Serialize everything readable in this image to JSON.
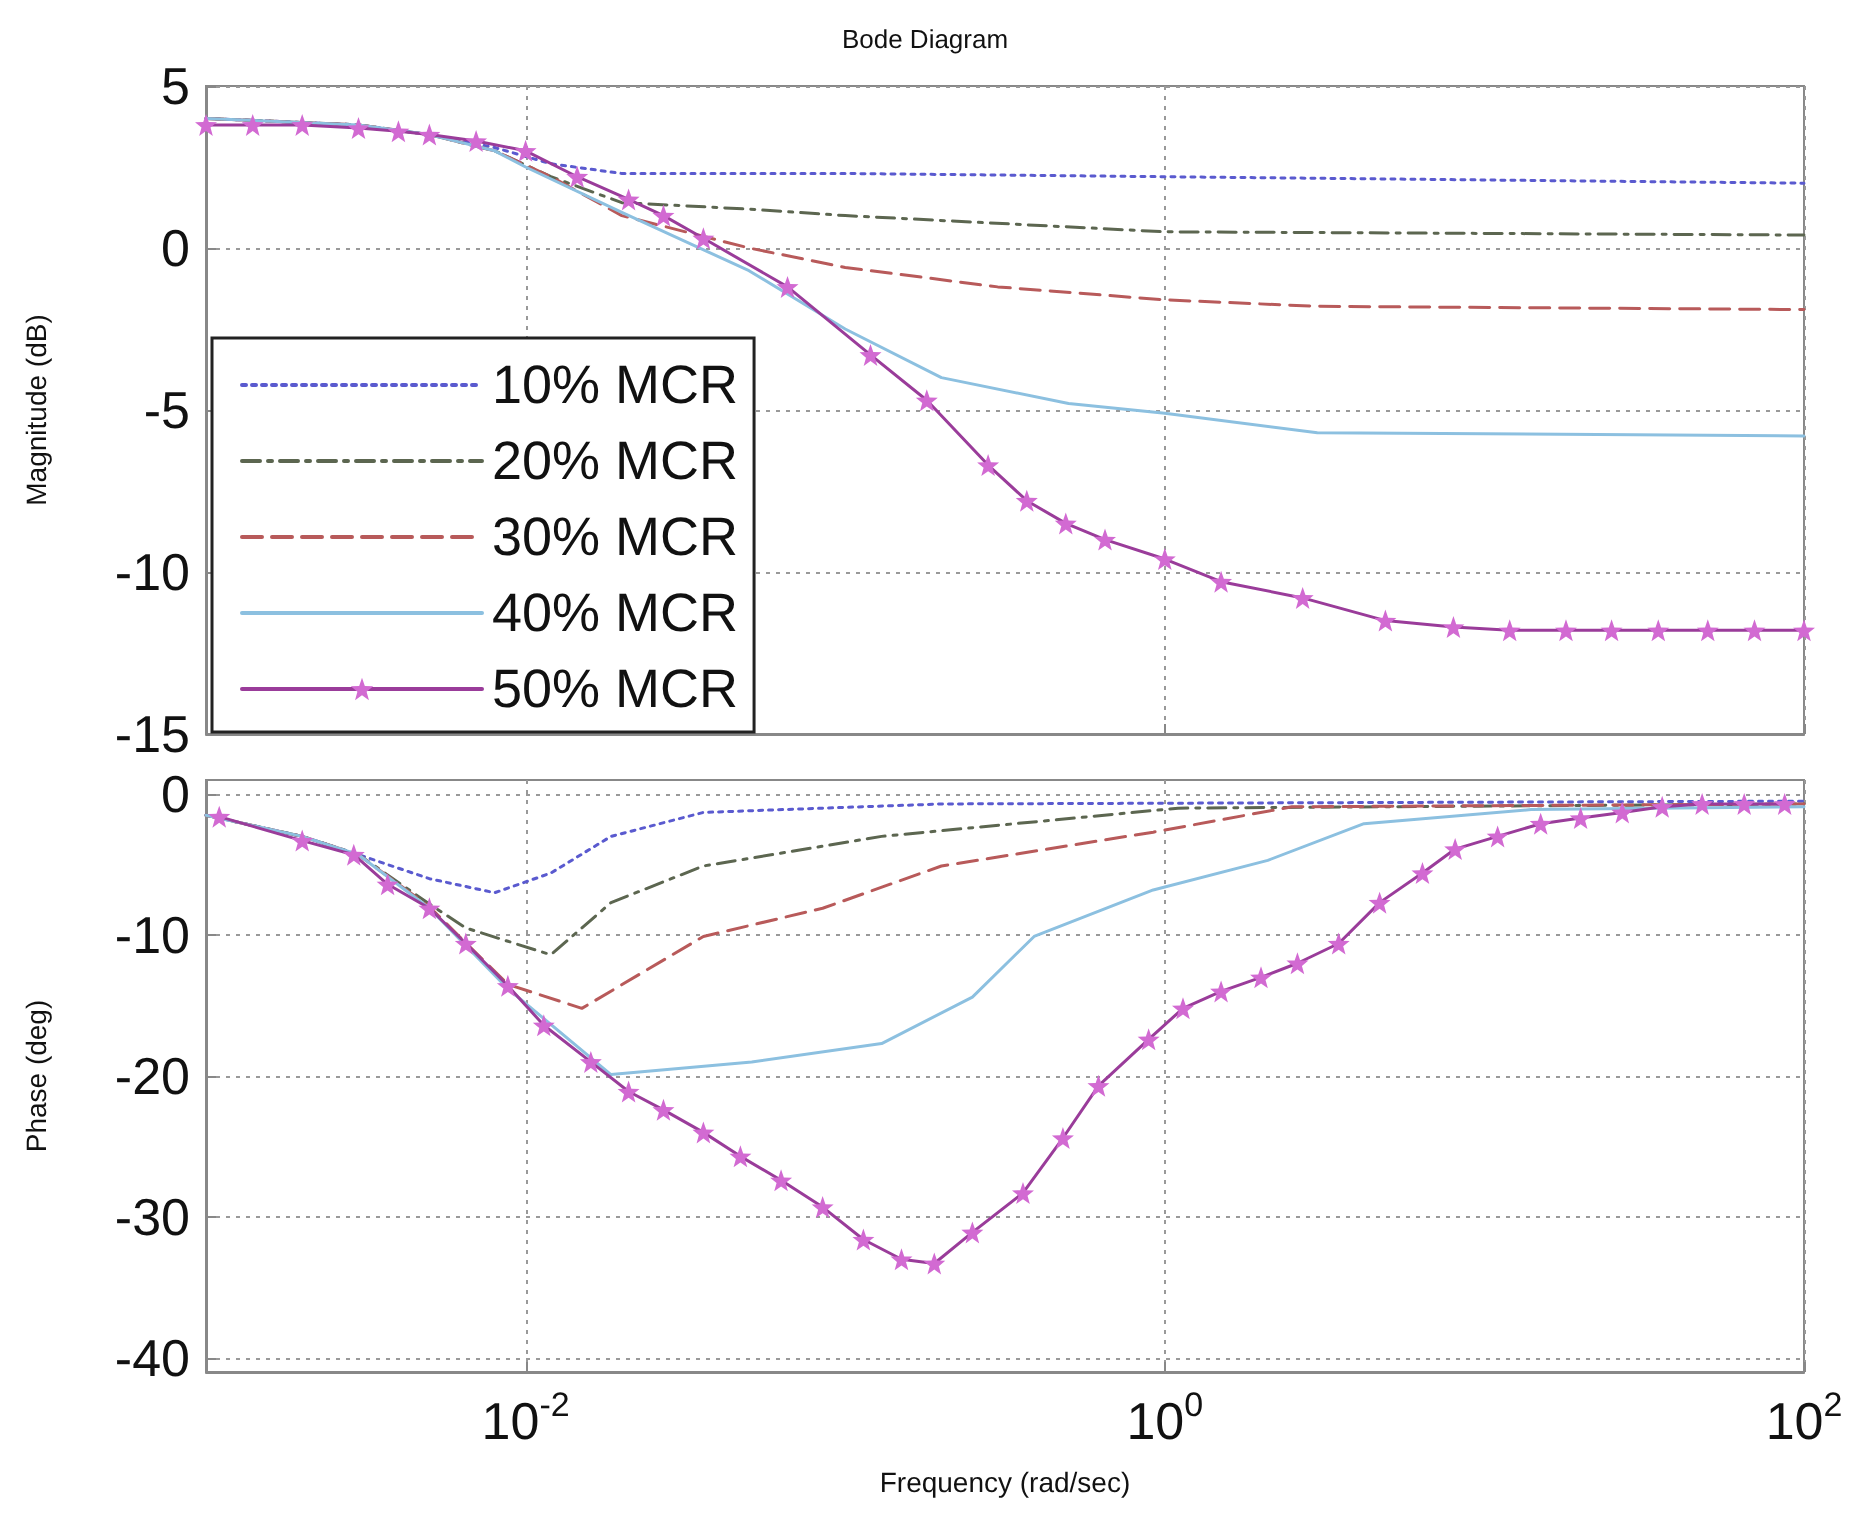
{
  "chart_data": [
    {
      "type": "line",
      "title": "Bode Diagram",
      "ylabel": "Magnitude (dB)",
      "xlim": [
        0.001,
        100
      ],
      "log": "x",
      "ylim": [
        -15,
        5
      ],
      "yticks": [
        5,
        0,
        -5,
        -10,
        -15
      ],
      "xticks": [
        {
          "value": 0.01,
          "label": null
        },
        {
          "value": 1,
          "label": null
        },
        {
          "value": 100,
          "label": null
        }
      ],
      "tick_labels": "y",
      "grid": true,
      "legend": "bottom left",
      "series": [
        {
          "name": "10% MCR",
          "color": "#5a5acf",
          "line_style": "dotted",
          "marker": "none",
          "x": [
            0.001,
            0.003,
            0.005,
            0.008,
            0.012,
            0.02,
            0.1,
            1,
            100
          ],
          "values": [
            4.0,
            3.8,
            3.5,
            3.1,
            2.6,
            2.3,
            2.3,
            2.2,
            2.0
          ]
        },
        {
          "name": "20% MCR",
          "color": "#5c6650",
          "line_style": "dashdot",
          "marker": "none",
          "x": [
            0.001,
            0.003,
            0.005,
            0.008,
            0.012,
            0.02,
            0.05,
            0.1,
            1,
            100
          ],
          "values": [
            4.0,
            3.8,
            3.5,
            3.0,
            2.2,
            1.4,
            1.2,
            1.0,
            0.5,
            0.4
          ]
        },
        {
          "name": "30% MCR",
          "color": "#b85a5a",
          "line_style": "dashed",
          "marker": "none",
          "x": [
            0.001,
            0.003,
            0.005,
            0.008,
            0.012,
            0.02,
            0.05,
            0.1,
            0.3,
            1,
            3,
            100
          ],
          "values": [
            4.0,
            3.8,
            3.5,
            3.0,
            2.2,
            1.0,
            0.0,
            -0.6,
            -1.2,
            -1.6,
            -1.8,
            -1.9
          ]
        },
        {
          "name": "40% MCR",
          "color": "#8cc0e0",
          "line_style": "solid",
          "marker": "none",
          "x": [
            0.001,
            0.003,
            0.005,
            0.008,
            0.01,
            0.02,
            0.05,
            0.1,
            0.2,
            0.5,
            1,
            3,
            100
          ],
          "values": [
            4.0,
            3.8,
            3.5,
            3.0,
            2.5,
            1.1,
            -0.7,
            -2.5,
            -4.0,
            -4.8,
            -5.1,
            -5.7,
            -5.8
          ]
        },
        {
          "name": "50% MCR",
          "color": "#9a3c9a",
          "line_style": "solid",
          "marker": "star",
          "x": [
            0.001,
            0.0014,
            0.002,
            0.003,
            0.004,
            0.005,
            0.007,
            0.01,
            0.0145,
            0.021,
            0.027,
            0.036,
            0.066,
            0.12,
            0.18,
            0.28,
            0.37,
            0.49,
            0.65,
            1,
            1.5,
            2.7,
            4.9,
            8,
            12,
            18,
            25,
            35,
            50,
            70,
            100
          ],
          "values": [
            3.8,
            3.8,
            3.8,
            3.7,
            3.6,
            3.5,
            3.3,
            3.0,
            2.2,
            1.5,
            1.0,
            0.3,
            -1.2,
            -3.3,
            -4.7,
            -6.7,
            -7.8,
            -8.5,
            -9.0,
            -9.6,
            -10.3,
            -10.8,
            -11.5,
            -11.7,
            -11.8,
            -11.8,
            -11.8,
            -11.8,
            -11.8,
            -11.8,
            -11.8
          ]
        }
      ]
    },
    {
      "type": "line",
      "ylabel": "Phase (deg)",
      "xlabel": "Frequency (rad/sec)",
      "xlim": [
        0.001,
        100
      ],
      "log": "x",
      "ylim": [
        -41,
        1
      ],
      "yticks": [
        0,
        -10,
        -20,
        -30,
        -40
      ],
      "xticks": [
        {
          "value": 0.01,
          "label": "10$^{-2}$"
        },
        {
          "value": 1,
          "label": "10$^{0}$"
        },
        {
          "value": 100,
          "label": "10$^{2}$"
        }
      ],
      "grid": true,
      "series": [
        {
          "color": "#5a5acf",
          "line_style": "dotted",
          "marker": "none",
          "x": [
            0.001,
            0.002,
            0.003,
            0.005,
            0.008,
            0.012,
            0.0185,
            0.036,
            0.2,
            100
          ],
          "values": [
            -1.5,
            -3.0,
            -4.3,
            -6.0,
            -7.0,
            -5.6,
            -3.0,
            -1.3,
            -0.7,
            -0.5
          ]
        },
        {
          "color": "#5c6650",
          "line_style": "dashdot",
          "marker": "none",
          "x": [
            0.001,
            0.002,
            0.003,
            0.005,
            0.0065,
            0.012,
            0.0185,
            0.036,
            0.13,
            1.1,
            100
          ],
          "values": [
            -1.5,
            -3.0,
            -4.3,
            -7.8,
            -9.5,
            -11.4,
            -7.7,
            -5.1,
            -3.0,
            -1.0,
            -0.7
          ]
        },
        {
          "color": "#b85a5a",
          "line_style": "dashed",
          "marker": "none",
          "x": [
            0.001,
            0.002,
            0.003,
            0.005,
            0.0088,
            0.015,
            0.036,
            0.085,
            0.2,
            0.92,
            2.5,
            100
          ],
          "values": [
            -1.5,
            -3.0,
            -4.3,
            -8.0,
            -13.5,
            -15.2,
            -10.1,
            -8.1,
            -5.1,
            -2.7,
            -0.9,
            -0.7
          ]
        },
        {
          "color": "#8cc0e0",
          "line_style": "solid",
          "marker": "none",
          "x": [
            0.001,
            0.002,
            0.003,
            0.005,
            0.0088,
            0.0185,
            0.051,
            0.13,
            0.25,
            0.39,
            0.92,
            2.1,
            4.2,
            14,
            100
          ],
          "values": [
            -1.5,
            -3.0,
            -4.3,
            -8.1,
            -13.8,
            -19.9,
            -19.0,
            -17.7,
            -14.4,
            -10.1,
            -6.8,
            -4.7,
            -2.1,
            -1.1,
            -0.9
          ]
        },
        {
          "color": "#9a3c9a",
          "line_style": "solid",
          "marker": "star",
          "x": [
            0.0011,
            0.002,
            0.0029,
            0.0037,
            0.005,
            0.0065,
            0.0088,
            0.0114,
            0.016,
            0.021,
            0.027,
            0.036,
            0.047,
            0.063,
            0.085,
            0.114,
            0.15,
            0.19,
            0.25,
            0.36,
            0.48,
            0.62,
            0.89,
            1.14,
            1.5,
            2.0,
            2.6,
            3.5,
            4.7,
            6.4,
            8.1,
            11,
            15,
            20,
            27,
            36,
            48,
            65,
            87
          ],
          "values": [
            -1.6,
            -3.3,
            -4.3,
            -6.4,
            -8.1,
            -10.6,
            -13.6,
            -16.4,
            -19.0,
            -21.1,
            -22.4,
            -24.0,
            -25.7,
            -27.4,
            -29.3,
            -31.6,
            -33.0,
            -33.3,
            -31.1,
            -28.3,
            -24.4,
            -20.7,
            -17.4,
            -15.2,
            -14.0,
            -13.0,
            -12.0,
            -10.6,
            -7.7,
            -5.6,
            -3.9,
            -3.0,
            -2.1,
            -1.7,
            -1.3,
            -0.9,
            -0.7,
            -0.7,
            -0.7
          ]
        }
      ]
    }
  ]
}
